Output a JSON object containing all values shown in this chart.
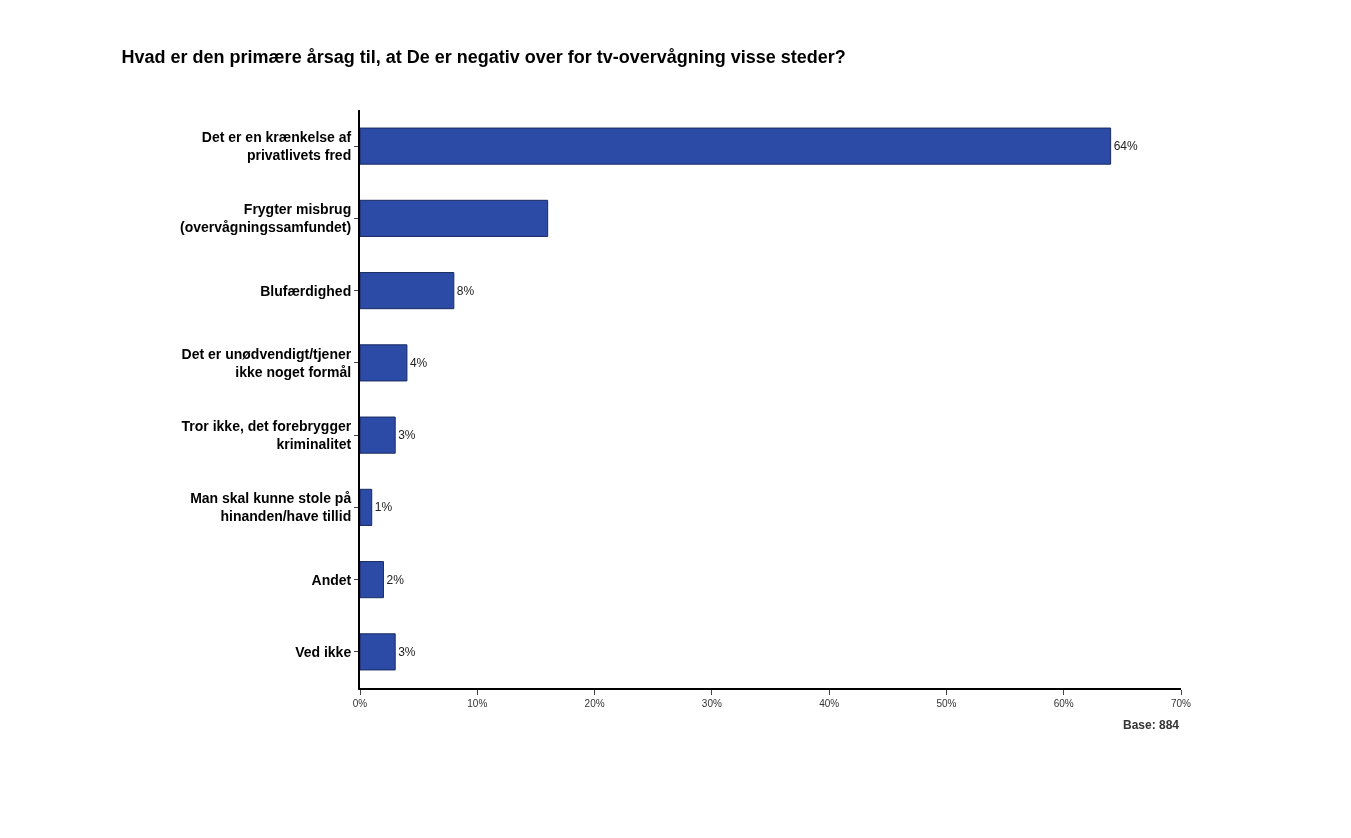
{
  "chart_data": {
    "type": "bar",
    "orientation": "horizontal",
    "title": "Hvad er den primære årsag til, at De er negativ over for tv-overvågning visse steder?",
    "categories": [
      "Det er en krænkelse af\nprivatlivets fred",
      "Frygter misbrug\n(overvågningssamfundet)",
      "Blufærdighed",
      "Det er unødvendigt/tjener\nikke noget formål",
      "Tror ikke, det forebrygger\nkriminalitet",
      "Man skal kunne stole på\nhinanden/have tillid",
      "Andet",
      "Ved ikke"
    ],
    "values": [
      64,
      16,
      8,
      4,
      3,
      1,
      2,
      3
    ],
    "value_labels": [
      "64%",
      null,
      "8%",
      "4%",
      "3%",
      "1%",
      "2%",
      "3%"
    ],
    "color": "#2b4ba6",
    "xlim": [
      0,
      70
    ],
    "xticks": [
      {
        "value": 0,
        "label": "0%"
      },
      {
        "value": 10,
        "label": "10%"
      },
      {
        "value": 20,
        "label": "20%"
      },
      {
        "value": 30,
        "label": "30%"
      },
      {
        "value": 40,
        "label": "40%"
      },
      {
        "value": 50,
        "label": "50%"
      },
      {
        "value": 60,
        "label": "60%"
      },
      {
        "value": 70,
        "label": "70%"
      }
    ],
    "grid": false,
    "legend": false,
    "annotations": [
      "Base: 884"
    ]
  }
}
